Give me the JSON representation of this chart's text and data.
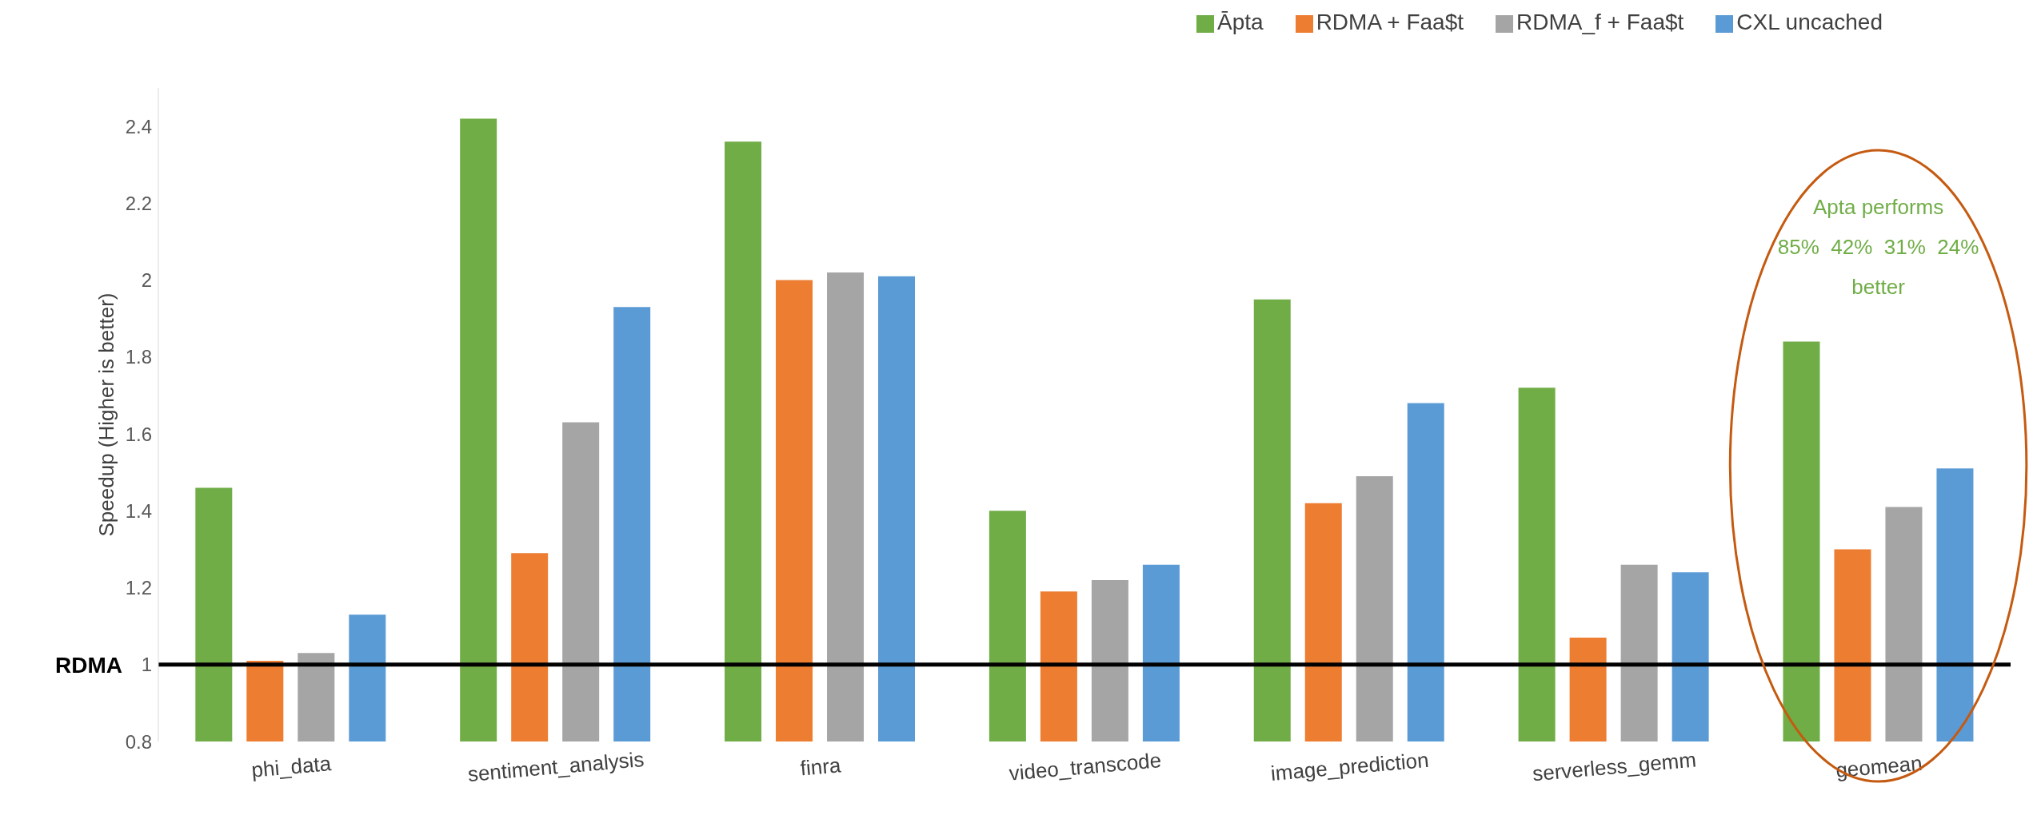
{
  "chart_data": {
    "type": "bar",
    "ylabel": "Speedup   (Higher is better)",
    "categories": [
      "phi_data",
      "sentiment_analysis",
      "finra",
      "video_transcode",
      "image_prediction",
      "serverless_gemm",
      "geomean"
    ],
    "series": [
      {
        "name": "Āpta",
        "color": "#70ad47",
        "values": [
          1.46,
          2.42,
          2.36,
          1.4,
          1.95,
          1.72,
          1.84
        ]
      },
      {
        "name": "RDMA + Faa$t",
        "color": "#ed7d31",
        "values": [
          1.01,
          1.29,
          2.0,
          1.19,
          1.42,
          1.07,
          1.3
        ]
      },
      {
        "name": "RDMA_f + Faa$t",
        "color": "#a5a5a5",
        "values": [
          1.03,
          1.63,
          2.02,
          1.22,
          1.49,
          1.26,
          1.41
        ]
      },
      {
        "name": "CXL uncached",
        "color": "#5b9bd5",
        "values": [
          1.13,
          1.93,
          2.01,
          1.26,
          1.68,
          1.24,
          1.51
        ]
      }
    ],
    "ylim": [
      0.8,
      2.5
    ],
    "yticks": [
      0.8,
      1,
      1.2,
      1.4,
      1.6,
      1.8,
      2,
      2.2,
      2.4
    ],
    "ref_lines": [
      {
        "axis": "y",
        "value": 1,
        "label": "RDMA",
        "color": "#000000"
      }
    ],
    "annotations": [
      "Apta performs",
      "85%  42%  31%  24%",
      "better"
    ],
    "legend": "top right"
  }
}
